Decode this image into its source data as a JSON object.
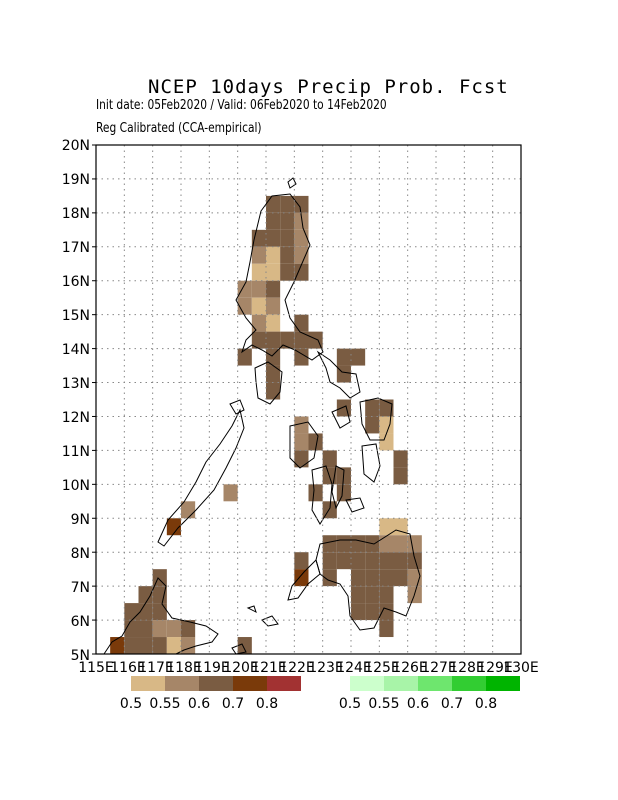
{
  "title": "NCEP 10days Precip Prob. Fcst",
  "subtitle1": "Init date: 05Feb2020 / Valid: 06Feb2020 to 14Feb2020",
  "subtitle2": "Reg Calibrated (CCA-empirical)",
  "y_ticks": [
    "20N",
    "19N",
    "18N",
    "17N",
    "16N",
    "15N",
    "14N",
    "13N",
    "12N",
    "11N",
    "10N",
    "9N",
    "8N",
    "7N",
    "6N",
    "5N"
  ],
  "x_ticks": [
    "115E",
    "116E",
    "117E",
    "118E",
    "119E",
    "120E",
    "121E",
    "122E",
    "123E",
    "124E",
    "125E",
    "126E",
    "127E",
    "128E",
    "129E",
    "130E"
  ],
  "legend_dry": {
    "colors": [
      "#d8b886",
      "#a68668",
      "#7a5c42",
      "#7a3a0a",
      "#a23232"
    ],
    "labels": [
      "0.5",
      "0.55",
      "0.6",
      "0.7",
      "0.8"
    ]
  },
  "legend_wet": {
    "colors": [
      "#ccffcc",
      "#a8f4a8",
      "#6ee66e",
      "#32cd32",
      "#00b400"
    ],
    "labels": [
      "0.5",
      "0.55",
      "0.6",
      "0.7",
      "0.8"
    ]
  },
  "grid": {
    "lon_range": [
      115,
      130
    ],
    "lat_range": [
      5,
      20
    ],
    "cell_deg": 0.5,
    "level_colors": [
      "#d8b886",
      "#a68668",
      "#7a5c42",
      "#7a3a0a",
      "#a23232"
    ],
    "cells": [
      [
        121,
        18,
        2
      ],
      [
        121.5,
        18,
        2
      ],
      [
        122,
        18,
        2
      ],
      [
        121,
        17.5,
        2
      ],
      [
        121.5,
        17.5,
        2
      ],
      [
        122,
        17.5,
        1
      ],
      [
        120.5,
        17,
        2
      ],
      [
        121,
        17,
        2
      ],
      [
        121.5,
        17,
        2
      ],
      [
        122,
        17,
        1
      ],
      [
        120.5,
        16.5,
        1
      ],
      [
        121,
        16.5,
        0
      ],
      [
        121.5,
        16.5,
        2
      ],
      [
        122,
        16.5,
        1
      ],
      [
        120.5,
        16,
        0
      ],
      [
        121,
        16,
        0
      ],
      [
        121.5,
        16,
        2
      ],
      [
        122,
        16,
        2
      ],
      [
        120,
        15.5,
        1
      ],
      [
        120.5,
        15.5,
        1
      ],
      [
        121,
        15.5,
        2
      ],
      [
        120,
        15,
        1
      ],
      [
        120.5,
        15,
        0
      ],
      [
        121,
        15,
        1
      ],
      [
        120.5,
        14.5,
        1
      ],
      [
        121,
        14.5,
        0
      ],
      [
        122,
        14.5,
        2
      ],
      [
        120.5,
        14,
        2
      ],
      [
        121,
        14,
        2
      ],
      [
        121.5,
        14,
        2
      ],
      [
        122,
        14,
        2
      ],
      [
        122.5,
        14,
        2
      ],
      [
        120,
        13.5,
        2
      ],
      [
        121,
        13.5,
        2
      ],
      [
        122,
        13.5,
        2
      ],
      [
        123.5,
        13.5,
        2
      ],
      [
        124,
        13.5,
        2
      ],
      [
        121,
        13,
        2
      ],
      [
        123.5,
        13,
        2
      ],
      [
        121,
        12.5,
        2
      ],
      [
        123.5,
        12,
        2
      ],
      [
        124.5,
        12,
        2
      ],
      [
        125,
        12,
        2
      ],
      [
        122,
        11.5,
        1
      ],
      [
        124.5,
        11.5,
        2
      ],
      [
        125,
        11.5,
        0
      ],
      [
        122,
        11,
        1
      ],
      [
        122.5,
        11,
        2
      ],
      [
        125,
        11,
        0
      ],
      [
        122,
        10.5,
        2
      ],
      [
        123,
        10.5,
        2
      ],
      [
        125.5,
        10.5,
        2
      ],
      [
        123,
        10,
        2
      ],
      [
        123.5,
        10,
        2
      ],
      [
        125.5,
        10,
        2
      ],
      [
        119.5,
        9.5,
        1
      ],
      [
        122.5,
        9.5,
        2
      ],
      [
        123.5,
        9.5,
        2
      ],
      [
        118,
        9,
        1
      ],
      [
        123,
        9,
        2
      ],
      [
        117.5,
        8.5,
        3
      ],
      [
        125,
        8.5,
        0
      ],
      [
        125.5,
        8.5,
        0
      ],
      [
        123,
        8,
        2
      ],
      [
        123.5,
        8,
        2
      ],
      [
        124,
        8,
        2
      ],
      [
        124.5,
        8,
        2
      ],
      [
        125,
        8,
        1
      ],
      [
        125.5,
        8,
        1
      ],
      [
        126,
        8,
        1
      ],
      [
        122,
        7.5,
        2
      ],
      [
        123,
        7.5,
        2
      ],
      [
        123.5,
        7.5,
        2
      ],
      [
        124,
        7.5,
        2
      ],
      [
        124.5,
        7.5,
        2
      ],
      [
        125,
        7.5,
        2
      ],
      [
        125.5,
        7.5,
        2
      ],
      [
        126,
        7.5,
        2
      ],
      [
        117,
        7,
        2
      ],
      [
        122,
        7,
        3
      ],
      [
        123,
        7,
        2
      ],
      [
        124,
        7,
        2
      ],
      [
        124.5,
        7,
        2
      ],
      [
        125,
        7,
        2
      ],
      [
        125.5,
        7,
        2
      ],
      [
        126,
        7,
        1
      ],
      [
        116.5,
        6.5,
        2
      ],
      [
        117,
        6.5,
        2
      ],
      [
        124,
        6.5,
        2
      ],
      [
        124.5,
        6.5,
        2
      ],
      [
        125,
        6.5,
        2
      ],
      [
        126,
        6.5,
        1
      ],
      [
        116,
        6,
        2
      ],
      [
        116.5,
        6,
        2
      ],
      [
        117,
        6,
        2
      ],
      [
        124,
        6,
        2
      ],
      [
        124.5,
        6,
        2
      ],
      [
        125,
        6,
        2
      ],
      [
        116,
        5.5,
        2
      ],
      [
        116.5,
        5.5,
        2
      ],
      [
        117,
        5.5,
        1
      ],
      [
        117.5,
        5.5,
        1
      ],
      [
        118,
        5.5,
        2
      ],
      [
        125,
        5.5,
        2
      ],
      [
        115.5,
        5,
        3
      ],
      [
        116,
        5,
        2
      ],
      [
        116.5,
        5,
        2
      ],
      [
        117,
        5,
        2
      ],
      [
        117.5,
        5,
        0
      ],
      [
        118,
        5,
        1
      ],
      [
        120,
        5,
        2
      ]
    ]
  }
}
